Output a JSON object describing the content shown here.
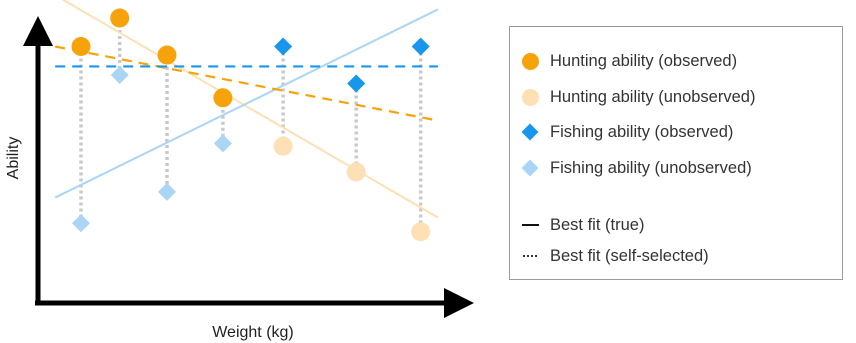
{
  "chart_data": {
    "type": "scatter",
    "xlabel": "Weight (kg)",
    "ylabel": "Ability",
    "xlim": [
      0,
      10
    ],
    "ylim": [
      0,
      10
    ],
    "series": [
      {
        "name": "Hunting ability (observed)",
        "marker": "circle",
        "color": "#f6a30b",
        "x": [
          1.0,
          1.9,
          3.0,
          4.3
        ],
        "y": [
          9.0,
          10.0,
          8.7,
          7.2
        ]
      },
      {
        "name": "Hunting ability (unobserved)",
        "marker": "circle",
        "color": "#fde0b4",
        "x": [
          5.7,
          7.4,
          8.9
        ],
        "y": [
          5.5,
          4.6,
          2.5
        ]
      },
      {
        "name": "Fishing ability (observed)",
        "marker": "diamond",
        "color": "#1896ec",
        "x": [
          5.7,
          7.4,
          8.9
        ],
        "y": [
          9.0,
          7.7,
          9.0
        ]
      },
      {
        "name": "Fishing ability (unobserved)",
        "marker": "diamond",
        "color": "#aad5f7",
        "x": [
          1.0,
          1.9,
          3.0,
          4.3
        ],
        "y": [
          2.8,
          8.0,
          3.9,
          5.6
        ]
      }
    ],
    "fit_lines": [
      {
        "series": "Hunting ability",
        "style": "solid",
        "color": "#fde0b4",
        "x": [
          0.4,
          9.3
        ],
        "y": [
          10.8,
          3.0
        ]
      },
      {
        "series": "Fishing ability",
        "style": "solid",
        "color": "#aad5f7",
        "x": [
          0.4,
          9.3
        ],
        "y": [
          3.7,
          10.3
        ]
      },
      {
        "series": "Hunting ability",
        "style": "dashed",
        "color": "#f6a30b",
        "x": [
          0.4,
          9.3
        ],
        "y": [
          9.0,
          6.4
        ]
      },
      {
        "series": "Fishing ability",
        "style": "dashed",
        "color": "#1896ec",
        "x": [
          0.4,
          9.3
        ],
        "y": [
          8.3,
          8.3
        ]
      }
    ],
    "legend": {
      "position": "right",
      "items": [
        {
          "label": "Hunting ability (observed)",
          "symbol": "circle",
          "color": "#f6a30b"
        },
        {
          "label": "Hunting ability (unobserved)",
          "symbol": "circle",
          "color": "#fde0b4"
        },
        {
          "label": "Fishing ability (observed)",
          "symbol": "diamond",
          "color": "#1896ec"
        },
        {
          "label": "Fishing ability (unobserved)",
          "symbol": "diamond",
          "color": "#aad5f7"
        },
        {
          "label": "Best fit (true)",
          "symbol": "solid-line",
          "color": "#111111"
        },
        {
          "label": "Best fit (self-selected)",
          "symbol": "dotted-line",
          "color": "#333333"
        }
      ]
    },
    "grid": false
  }
}
